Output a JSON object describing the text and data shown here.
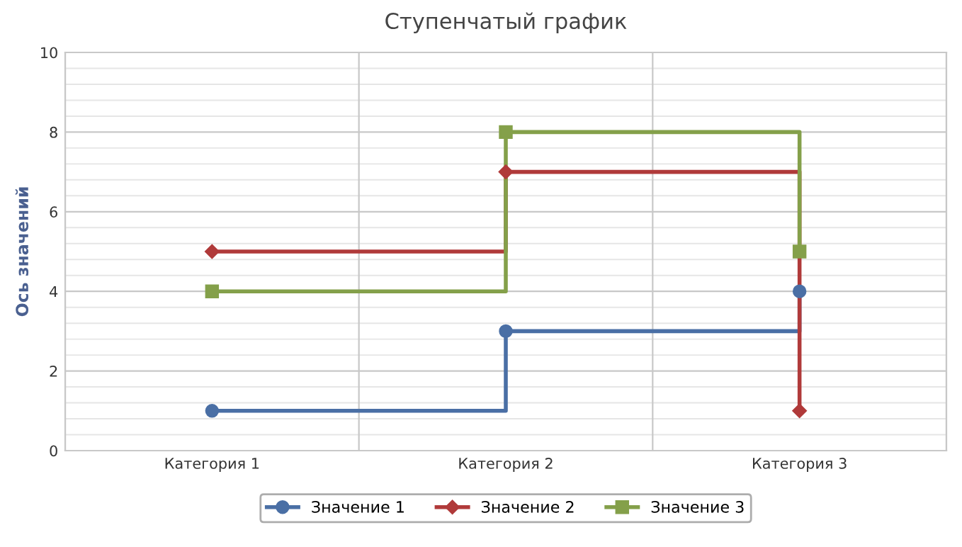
{
  "chart_data": {
    "type": "step",
    "title": "Ступенчатый график",
    "ylabel": "Ось значений",
    "categories": [
      "Категория 1",
      "Категория 2",
      "Категория 3"
    ],
    "series": [
      {
        "name": "Значение 1",
        "color": "#4a6fa5",
        "values": [
          1,
          3,
          4
        ],
        "marker": "circle"
      },
      {
        "name": "Значение 2",
        "color": "#b03a3a",
        "values": [
          5,
          7,
          1
        ],
        "marker": "diamond"
      },
      {
        "name": "Значение 3",
        "color": "#84a04a",
        "values": [
          4,
          8,
          5
        ],
        "marker": "square"
      }
    ],
    "ylim": [
      0,
      10
    ],
    "yticks": [
      0,
      2,
      4,
      6,
      8,
      10
    ],
    "grid": true,
    "legend": "bottom",
    "line_style": "solid"
  }
}
